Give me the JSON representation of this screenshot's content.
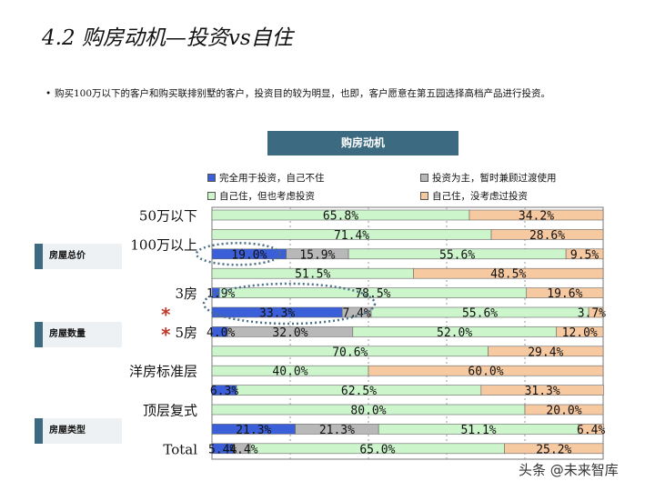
{
  "page": {
    "title": "4.2 购房动机—投资vs自住",
    "bullet": "购买100万以下的客户和购买联排别墅的客户，投资目的较为明显，也即，客户愿意在第五园选择高档产品进行投资。",
    "watermark": "头条 @未来智库"
  },
  "side_labels": [
    "房屋总价",
    "房屋数量",
    "房屋类型"
  ],
  "stars": [
    "*",
    "*"
  ],
  "colors": {
    "investment_only": "#3a5fd8",
    "investment_transitional": "#b8b8b8",
    "self_use_investment": "#ccf5cc",
    "self_use_only": "#f7c9a0",
    "side_bar": "#3c6a80",
    "highlight_dots": "#4a6f86",
    "star": "#c0392b"
  },
  "chart_data": {
    "type": "bar",
    "orientation": "horizontal",
    "stacked": "percent",
    "title": "购房动机",
    "legend_position": "top",
    "series": [
      {
        "name": "完全用于投资，自己不住",
        "color": "#3a5fd8"
      },
      {
        "name": "投资为主，暂时兼顾过渡使用",
        "color": "#b8b8b8"
      },
      {
        "name": "自己住，但也考虑投资",
        "color": "#ccf5cc"
      },
      {
        "name": "自己住，没考虑过投资",
        "color": "#f7c9a0"
      }
    ],
    "category_labels": [
      {
        "text": "50万以下",
        "row": 0
      },
      {
        "text": "100万以上",
        "row": 1.5
      },
      {
        "text": "3房",
        "row": 4
      },
      {
        "text": "5房",
        "row": 6
      },
      {
        "text": "洋房标准层",
        "row": 8
      },
      {
        "text": "顶层复式",
        "row": 10
      },
      {
        "text": "Total",
        "row": 12
      }
    ],
    "rows": [
      {
        "values": [
          0,
          0,
          65.8,
          34.2
        ],
        "labels": [
          "",
          "",
          "65.8%",
          "34.2%"
        ]
      },
      {
        "values": [
          0,
          0,
          71.4,
          28.6
        ],
        "labels": [
          "",
          "",
          "71.4%",
          "28.6%"
        ]
      },
      {
        "values": [
          19.0,
          15.9,
          55.6,
          9.5
        ],
        "labels": [
          "19.0%",
          "15.9%",
          "55.6%",
          "9.5%"
        ]
      },
      {
        "values": [
          0,
          0,
          51.5,
          48.5
        ],
        "labels": [
          "",
          "",
          "51.5%",
          "48.5%"
        ]
      },
      {
        "values": [
          1.9,
          0,
          78.5,
          19.6
        ],
        "labels": [
          "1.9%",
          "",
          "78.5%",
          "19.6%"
        ]
      },
      {
        "values": [
          33.3,
          7.4,
          55.6,
          3.7
        ],
        "labels": [
          "33.3%",
          "7.4%",
          "55.6%",
          "3.7%"
        ]
      },
      {
        "values": [
          4.0,
          32.0,
          52.0,
          12.0
        ],
        "labels": [
          "4.0%",
          "32.0%",
          "52.0%",
          "12.0%"
        ]
      },
      {
        "values": [
          0,
          0,
          70.6,
          29.4
        ],
        "labels": [
          "",
          "",
          "70.6%",
          "29.4%"
        ]
      },
      {
        "values": [
          0,
          0,
          40.0,
          60.0
        ],
        "labels": [
          "",
          "",
          "40.0%",
          "60.0%"
        ]
      },
      {
        "values": [
          6.3,
          0,
          62.5,
          31.3
        ],
        "labels": [
          "6.3%",
          "",
          "62.5%",
          "31.3%"
        ]
      },
      {
        "values": [
          0,
          0,
          80.0,
          20.0
        ],
        "labels": [
          "",
          "",
          "80.0%",
          "20.0%"
        ]
      },
      {
        "values": [
          21.3,
          21.3,
          51.1,
          6.4
        ],
        "labels": [
          "21.3%",
          "21.3%",
          "51.1%",
          "6.4%"
        ]
      },
      {
        "values": [
          5.4,
          4.4,
          65.0,
          25.2
        ],
        "labels": [
          "5.4%",
          "4.4%",
          "65.0%",
          "25.2%"
        ]
      }
    ],
    "xlim": [
      0,
      100
    ],
    "grid": "vertical-dotted"
  }
}
